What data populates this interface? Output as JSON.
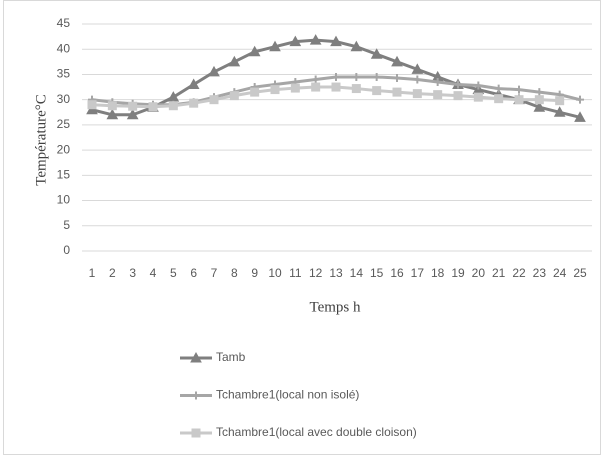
{
  "chart_data": {
    "type": "line",
    "x_label": "Temps h",
    "y_label": "Température°C",
    "categories": [
      "1",
      "2",
      "3",
      "4",
      "5",
      "6",
      "7",
      "8",
      "9",
      "10",
      "11",
      "12",
      "13",
      "14",
      "15",
      "16",
      "17",
      "18",
      "19",
      "20",
      "21",
      "22",
      "23",
      "24",
      "25"
    ],
    "series": [
      {
        "name": "Tamb",
        "color": "#7f7f7f",
        "marker": "triangle",
        "values": [
          28,
          27,
          27,
          28.5,
          30.5,
          33,
          35.5,
          37.5,
          39.5,
          40.5,
          41.5,
          41.8,
          41.5,
          40.5,
          39,
          37.5,
          36,
          34.5,
          33,
          32,
          31,
          30,
          28.5,
          27.5,
          26.5
        ]
      },
      {
        "name": "Tchambre1(local non isolé)",
        "color": "#a6a6a6",
        "marker": "star",
        "values": [
          30,
          29.5,
          29.2,
          29,
          29,
          29.5,
          30.5,
          31.5,
          32.5,
          33,
          33.5,
          34,
          34.5,
          34.5,
          34.5,
          34.3,
          34,
          33.5,
          33,
          32.8,
          32.2,
          32,
          31.5,
          31,
          30
        ]
      },
      {
        "name": "Tchambre1(local avec double cloison)",
        "color": "#c9c9c9",
        "marker": "square",
        "values": [
          29,
          28.8,
          28.7,
          28.6,
          28.8,
          29.3,
          30,
          30.8,
          31.5,
          32,
          32.3,
          32.5,
          32.5,
          32.2,
          31.8,
          31.5,
          31.2,
          31,
          30.8,
          30.5,
          30.2,
          30,
          30,
          29.8,
          null
        ]
      }
    ],
    "ylim": [
      0,
      45
    ],
    "yticks": [
      0,
      5,
      10,
      15,
      20,
      25,
      30,
      35,
      40,
      45
    ],
    "grid": true
  }
}
